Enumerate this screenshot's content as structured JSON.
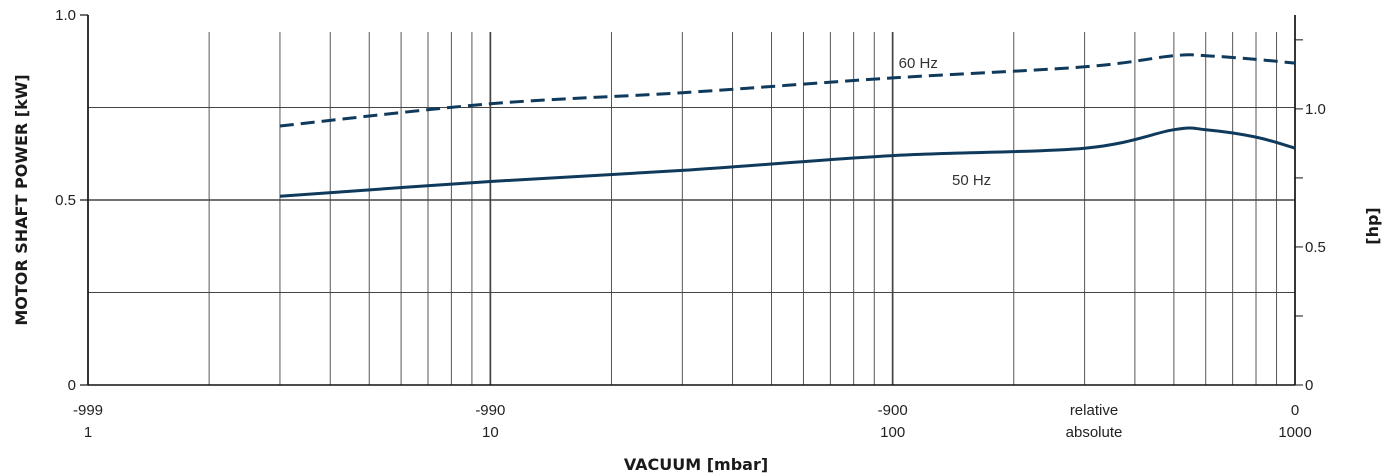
{
  "chart_data": {
    "type": "line",
    "x_scale": "log",
    "x_domain": [
      1,
      1000
    ],
    "x_ticks_top": [
      "-999",
      "-990",
      "-900",
      "relative",
      "0"
    ],
    "x_ticks_bottom": [
      "1",
      "10",
      "100",
      "absolute",
      "1000"
    ],
    "xlabel": "VACUUM  [mbar]",
    "ylabel": "MOTOR SHAFT POWER  [kW]",
    "ylim": [
      0,
      1.0
    ],
    "y_ticks": [
      "0",
      "0.5",
      "1.0"
    ],
    "y2label": "[hp]",
    "y2lim": [
      0,
      1.34
    ],
    "y2_ticks": [
      "0",
      "0.5",
      "1.0"
    ],
    "grid": true,
    "series": [
      {
        "name": "60 Hz",
        "style": "dashed",
        "x": [
          3,
          10,
          30,
          100,
          300,
          500,
          600,
          800,
          1000
        ],
        "y": [
          0.7,
          0.76,
          0.79,
          0.83,
          0.86,
          0.89,
          0.89,
          0.88,
          0.87
        ]
      },
      {
        "name": "50 Hz",
        "style": "solid",
        "x": [
          3,
          10,
          30,
          100,
          300,
          500,
          600,
          800,
          1000
        ],
        "y": [
          0.51,
          0.55,
          0.58,
          0.62,
          0.64,
          0.69,
          0.69,
          0.67,
          0.64
        ]
      }
    ],
    "colors": {
      "series": "#0f3a5c",
      "grid": "#444444",
      "axis": "#111111"
    }
  }
}
